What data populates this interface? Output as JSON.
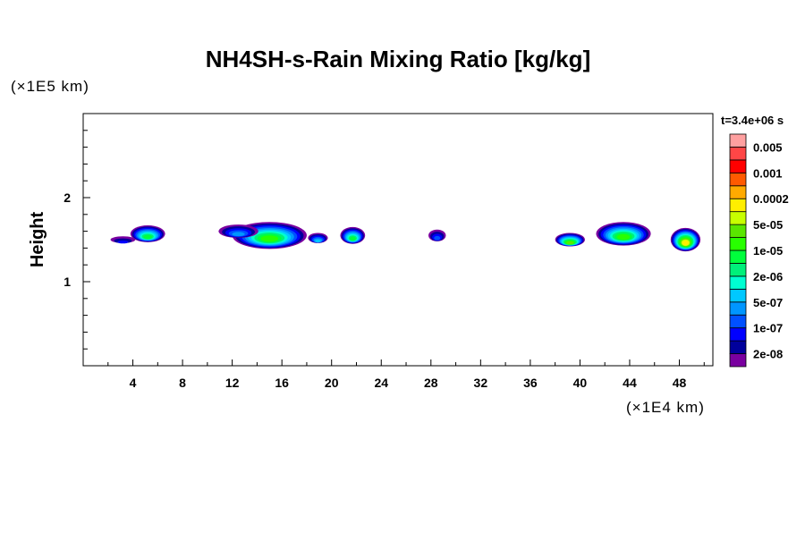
{
  "chart_data": {
    "type": "heatmap",
    "title": "NH4SH-s-Rain Mixing Ratio [kg/kg]",
    "xlabel": "(×1E4 km)",
    "ylabel": "Height",
    "yunit": "(×1E5 km)",
    "time_label": "t=3.4e+06 s",
    "xlim": [
      0,
      50.7
    ],
    "ylim": [
      0,
      3.0
    ],
    "xticks": [
      "4",
      "8",
      "12",
      "16",
      "20",
      "24",
      "28",
      "32",
      "36",
      "40",
      "44",
      "48"
    ],
    "xtick_values": [
      4,
      8,
      12,
      16,
      20,
      24,
      28,
      32,
      36,
      40,
      44,
      48
    ],
    "yticks": [
      "1",
      "2"
    ],
    "ytick_values": [
      1,
      2
    ],
    "colorbar": {
      "colors": [
        "#7a00a0",
        "#00009c",
        "#0000ff",
        "#0050ff",
        "#0096ff",
        "#00c8ff",
        "#00ffd2",
        "#00f07a",
        "#00ff3c",
        "#28ff00",
        "#5ae600",
        "#c8ff00",
        "#ffee00",
        "#ffaa00",
        "#ff5a00",
        "#ff0000",
        "#ff4646",
        "#ffa0a0"
      ],
      "labels": [
        "2e-08",
        "1e-07",
        "5e-07",
        "2e-06",
        "1e-05",
        "5e-05",
        "0.0002",
        "0.001",
        "0.005"
      ]
    },
    "features": [
      {
        "x": 5.2,
        "y": 1.57,
        "w": 1.4,
        "h": 0.1,
        "level": 8
      },
      {
        "x": 3.2,
        "y": 1.5,
        "w": 1.0,
        "h": 0.04,
        "level": 2
      },
      {
        "x": 15.0,
        "y": 1.55,
        "w": 3.0,
        "h": 0.16,
        "level": 9
      },
      {
        "x": 12.5,
        "y": 1.6,
        "w": 1.6,
        "h": 0.08,
        "level": 4
      },
      {
        "x": 18.9,
        "y": 1.52,
        "w": 0.8,
        "h": 0.06,
        "level": 5
      },
      {
        "x": 21.7,
        "y": 1.55,
        "w": 1.0,
        "h": 0.1,
        "level": 8
      },
      {
        "x": 28.5,
        "y": 1.55,
        "w": 0.7,
        "h": 0.07,
        "level": 3
      },
      {
        "x": 39.2,
        "y": 1.5,
        "w": 1.2,
        "h": 0.08,
        "level": 10
      },
      {
        "x": 43.5,
        "y": 1.57,
        "w": 2.2,
        "h": 0.14,
        "level": 9
      },
      {
        "x": 48.5,
        "y": 1.5,
        "w": 1.2,
        "h": 0.14,
        "level": 12
      }
    ]
  }
}
